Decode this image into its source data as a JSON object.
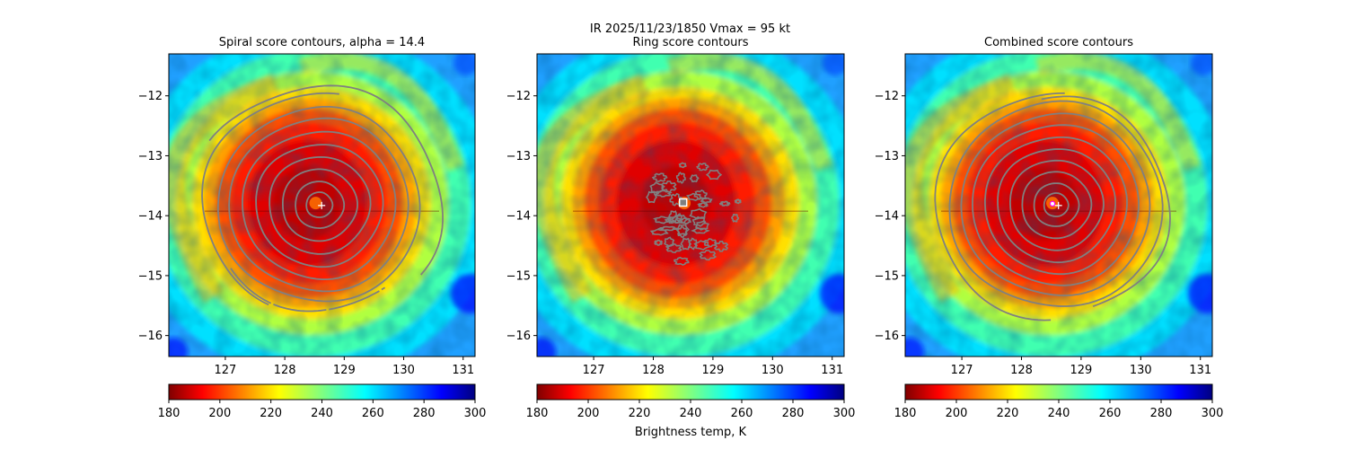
{
  "figure": {
    "suptitle_line1": "IR  2025/11/23/1850    Vmax = 95 kt",
    "colorbar_label": "Brightness temp, K"
  },
  "chart_data": [
    {
      "type": "heatmap",
      "title": "Spiral score contours, alpha = 14.4",
      "xlim": [
        126.05,
        131.2
      ],
      "ylim": [
        -16.35,
        -11.3
      ],
      "xticks": [
        127,
        128,
        129,
        130,
        131
      ],
      "yticks": [
        -12,
        -13,
        -14,
        -15,
        -16
      ],
      "xtick_labels": [
        "127",
        "128",
        "129",
        "130",
        "131"
      ],
      "ytick_labels": [
        "−12",
        "−13",
        "−14",
        "−15",
        "−16"
      ],
      "storm_center": [
        128.55,
        -13.85
      ],
      "contour_color": "#808080",
      "contours": "spiral",
      "markers": [
        {
          "shape": "plus",
          "color": "#ffffff",
          "lon": 128.62,
          "lat": -13.83
        }
      ],
      "colorbar": {
        "cmap": "jet_r",
        "range": [
          180,
          300
        ],
        "ticks": [
          180,
          200,
          220,
          240,
          260,
          280,
          300
        ],
        "tick_labels": [
          "180",
          "200",
          "220",
          "240",
          "260",
          "280",
          "300"
        ]
      }
    },
    {
      "type": "heatmap",
      "title": "Ring score contours",
      "xlim": [
        126.05,
        131.2
      ],
      "ylim": [
        -16.35,
        -11.3
      ],
      "xticks": [
        127,
        128,
        129,
        130,
        131
      ],
      "yticks": [
        -12,
        -13,
        -14,
        -15,
        -16
      ],
      "xtick_labels": [
        "127",
        "128",
        "129",
        "130",
        "131"
      ],
      "ytick_labels": [
        "−12",
        "−13",
        "−14",
        "−15",
        "−16"
      ],
      "storm_center": [
        128.55,
        -13.85
      ],
      "contour_color": "#808080",
      "contours": "ring",
      "markers": [
        {
          "shape": "square",
          "color": "#ffffff",
          "lon": 128.5,
          "lat": -13.78
        }
      ],
      "colorbar": {
        "cmap": "jet_r",
        "range": [
          180,
          300
        ],
        "ticks": [
          180,
          200,
          220,
          240,
          260,
          280,
          300
        ],
        "tick_labels": [
          "180",
          "200",
          "220",
          "240",
          "260",
          "280",
          "300"
        ]
      }
    },
    {
      "type": "heatmap",
      "title": "Combined score contours",
      "xlim": [
        126.05,
        131.2
      ],
      "ylim": [
        -16.35,
        -11.3
      ],
      "xticks": [
        127,
        128,
        129,
        130,
        131
      ],
      "yticks": [
        -12,
        -13,
        -14,
        -15,
        -16
      ],
      "xtick_labels": [
        "127",
        "128",
        "129",
        "130",
        "131"
      ],
      "ytick_labels": [
        "−12",
        "−13",
        "−14",
        "−15",
        "−16"
      ],
      "storm_center": [
        128.55,
        -13.85
      ],
      "contour_color": "#808080",
      "contours": "combined",
      "markers": [
        {
          "shape": "circle",
          "color": "#ff00ff",
          "lon": 128.52,
          "lat": -13.8
        },
        {
          "shape": "plus",
          "color": "#ffffff",
          "lon": 128.62,
          "lat": -13.83
        }
      ],
      "colorbar": {
        "cmap": "jet_r",
        "range": [
          180,
          300
        ],
        "ticks": [
          180,
          200,
          220,
          240,
          260,
          280,
          300
        ],
        "tick_labels": [
          "180",
          "200",
          "220",
          "240",
          "260",
          "280",
          "300"
        ]
      }
    }
  ]
}
